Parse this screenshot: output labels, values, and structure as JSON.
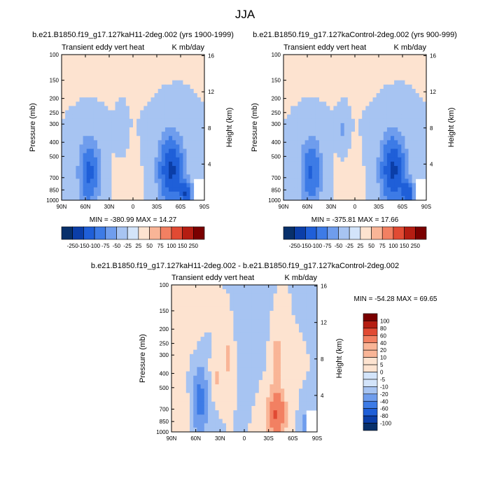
{
  "figure": {
    "title": "JJA"
  },
  "colormaps": {
    "diverging": [
      "#08306b",
      "#0b3ea8",
      "#1f5fd8",
      "#3d7be6",
      "#6f9ded",
      "#a7c4f2",
      "#d3e4fa",
      "#fde3d0",
      "#f9b597",
      "#f28062",
      "#e14a33",
      "#b51d12",
      "#7a0000"
    ]
  },
  "chart_data": [
    {
      "type": "heatmap",
      "id": "top-left",
      "subtitle": "b.e21.B1850.f19_g17.127kaH11-2deg.002 (yrs 1900-1999)",
      "left_label": "Transient eddy vert heat",
      "right_label": "K mb/day",
      "ylabel": "Pressure (mb)",
      "y2label": "Height (km)",
      "xticks": [
        "90N",
        "60N",
        "30N",
        "0",
        "30S",
        "60S",
        "90S"
      ],
      "yticks": [
        "100",
        "150",
        "200",
        "250",
        "300",
        "400",
        "500",
        "700",
        "850",
        "1000"
      ],
      "y2ticks": [
        "16",
        "12",
        "8",
        "4"
      ],
      "min_max": "MIN = -380.99  MAX = 14.27",
      "colorbar_labels": [
        "-250",
        "-150",
        "-100",
        "-75",
        "-50",
        "-25",
        "25",
        "50",
        "75",
        "100",
        "150",
        "250"
      ],
      "max_abs": 380,
      "blobs": [
        {
          "lat": 55,
          "p": 650,
          "slat": 11,
          "sh": 0.45,
          "amp": -240
        },
        {
          "lat": -48,
          "p": 620,
          "slat": 13,
          "sh": 0.45,
          "amp": -300
        },
        {
          "lat": -68,
          "p": 900,
          "slat": 6,
          "sh": 0.14,
          "amp": -220
        },
        {
          "lat": 15,
          "p": 330,
          "slat": 4,
          "sh": 0.22,
          "amp": -80
        },
        {
          "lat": 10,
          "p": 700,
          "slat": 15,
          "sh": 0.3,
          "amp": 18
        },
        {
          "lat": 45,
          "p": 130,
          "slat": 50,
          "sh": 0.28,
          "amp": 18
        }
      ]
    },
    {
      "type": "heatmap",
      "id": "top-right",
      "subtitle": "b.e21.B1850.f19_g17.127kaControl-2deg.002 (yrs 900-999)",
      "left_label": "Transient eddy vert heat",
      "right_label": "K mb/day",
      "ylabel": "Pressure (mb)",
      "y2label": "Height (km)",
      "xticks": [
        "90N",
        "60N",
        "30N",
        "0",
        "30S",
        "60S",
        "90S"
      ],
      "yticks": [
        "100",
        "150",
        "200",
        "250",
        "300",
        "400",
        "500",
        "700",
        "850",
        "1000"
      ],
      "y2ticks": [
        "16",
        "12",
        "8",
        "4"
      ],
      "min_max": "MIN = -375.81  MAX = 17.66",
      "colorbar_labels": [
        "-250",
        "-150",
        "-100",
        "-75",
        "-50",
        "-25",
        "25",
        "50",
        "75",
        "100",
        "150",
        "250"
      ],
      "max_abs": 380,
      "blobs": [
        {
          "lat": 55,
          "p": 650,
          "slat": 11,
          "sh": 0.45,
          "amp": -230
        },
        {
          "lat": -48,
          "p": 620,
          "slat": 13,
          "sh": 0.45,
          "amp": -300
        },
        {
          "lat": -68,
          "p": 900,
          "slat": 6,
          "sh": 0.14,
          "amp": -210
        },
        {
          "lat": 15,
          "p": 330,
          "slat": 4,
          "sh": 0.22,
          "amp": -110
        },
        {
          "lat": 10,
          "p": 700,
          "slat": 15,
          "sh": 0.3,
          "amp": 18
        },
        {
          "lat": 45,
          "p": 130,
          "slat": 50,
          "sh": 0.28,
          "amp": 18
        }
      ]
    },
    {
      "type": "heatmap",
      "id": "bottom",
      "subtitle": "b.e21.B1850.f19_g17.127kaH11-2deg.002 - b.e21.B1850.f19_g17.127kaControl-2deg.002",
      "left_label": "Transient eddy vert heat",
      "right_label": "K mb/day",
      "ylabel": "Pressure (mb)",
      "y2label": "Height (km)",
      "xticks": [
        "90N",
        "60N",
        "30N",
        "0",
        "30S",
        "60S",
        "90S"
      ],
      "yticks": [
        "100",
        "150",
        "200",
        "250",
        "300",
        "400",
        "500",
        "700",
        "850",
        "1000"
      ],
      "y2ticks": [
        "16",
        "12",
        "8",
        "4"
      ],
      "min_max": "MIN = -54.28  MAX =  69.65",
      "colorbar_labels": [
        "100",
        "80",
        "60",
        "40",
        "20",
        "10",
        "5",
        "0",
        "-5",
        "-10",
        "-20",
        "-40",
        "-60",
        "-80",
        "-100"
      ],
      "max_abs": 100,
      "blobs": [
        {
          "lat": 55,
          "p": 600,
          "slat": 9,
          "sh": 0.45,
          "amp": -50
        },
        {
          "lat": 35,
          "p": 420,
          "slat": 6,
          "sh": 0.25,
          "amp": 30
        },
        {
          "lat": 20,
          "p": 320,
          "slat": 4,
          "sh": 0.3,
          "amp": 30
        },
        {
          "lat": -40,
          "p": 760,
          "slat": 10,
          "sh": 0.35,
          "amp": 60
        },
        {
          "lat": -40,
          "p": 300,
          "slat": 5,
          "sh": 0.3,
          "amp": 35
        },
        {
          "lat": -75,
          "p": 900,
          "slat": 5,
          "sh": 0.2,
          "amp": -35
        },
        {
          "lat": 75,
          "p": 700,
          "slat": 6,
          "sh": 0.4,
          "amp": 22
        },
        {
          "lat": -10,
          "p": 200,
          "slat": 10,
          "sh": 0.5,
          "amp": -18
        },
        {
          "lat": 65,
          "p": 200,
          "slat": 10,
          "sh": 0.4,
          "amp": 12
        }
      ]
    }
  ]
}
